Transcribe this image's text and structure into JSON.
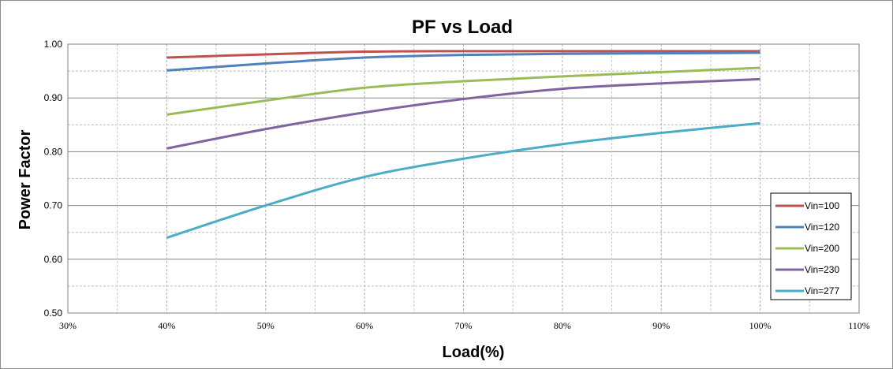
{
  "chart_data": {
    "type": "line",
    "title": "PF vs Load",
    "xlabel": "Load(%)",
    "ylabel": "Power Factor",
    "xlim": [
      30,
      110
    ],
    "ylim": [
      0.5,
      1.0
    ],
    "x_ticks": [
      "30%",
      "40%",
      "50%",
      "60%",
      "70%",
      "80%",
      "90%",
      "100%",
      "110%"
    ],
    "y_ticks": [
      "0.50",
      "0.60",
      "0.70",
      "0.80",
      "0.90",
      "1.00"
    ],
    "grid": true,
    "legend_position": "right",
    "x": [
      40,
      50,
      60,
      70,
      80,
      90,
      100
    ],
    "series": [
      {
        "name": "Vin=100",
        "color": "#C0504D",
        "values": [
          0.975,
          0.981,
          0.986,
          0.987,
          0.987,
          0.987,
          0.987
        ]
      },
      {
        "name": "Vin=120",
        "color": "#4F81BD",
        "values": [
          0.951,
          0.964,
          0.975,
          0.98,
          0.982,
          0.983,
          0.984
        ]
      },
      {
        "name": "Vin=200",
        "color": "#9BBB59",
        "values": [
          0.869,
          0.895,
          0.919,
          0.931,
          0.94,
          0.948,
          0.956
        ]
      },
      {
        "name": "Vin=230",
        "color": "#8064A2",
        "values": [
          0.806,
          0.842,
          0.873,
          0.898,
          0.917,
          0.927,
          0.935
        ]
      },
      {
        "name": "Vin=277",
        "color": "#4BACC6",
        "values": [
          0.64,
          0.7,
          0.753,
          0.787,
          0.814,
          0.835,
          0.853
        ]
      }
    ]
  }
}
